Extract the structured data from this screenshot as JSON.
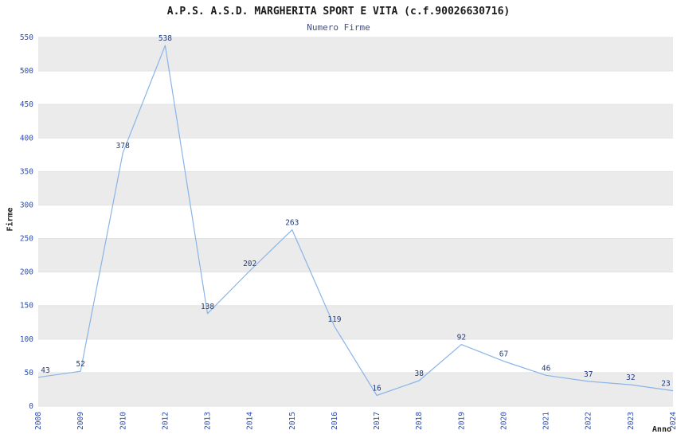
{
  "chart_data": {
    "type": "line",
    "title": "A.P.S. A.S.D. MARGHERITA SPORT E VITA (c.f.90026630716)",
    "subtitle": "Numero Firme",
    "xlabel": "Anno",
    "ylabel": "Firme",
    "categories": [
      "2008",
      "2009",
      "2010",
      "2012",
      "2013",
      "2014",
      "2015",
      "2016",
      "2017",
      "2018",
      "2019",
      "2020",
      "2021",
      "2022",
      "2023",
      "2024"
    ],
    "values": [
      43,
      52,
      378,
      538,
      138,
      202,
      263,
      119,
      16,
      38,
      92,
      67,
      46,
      37,
      32,
      23
    ],
    "ylim": [
      0,
      550
    ],
    "ytick_step": 50,
    "grid": "horizontal-bands",
    "legend": "none",
    "colors": {
      "line": "#8ab4e8",
      "band": "#ebebeb",
      "band_alt": "#ffffff",
      "grid_line": "#e3e3e3",
      "tick_label": "#2b4db3",
      "data_label": "#1f3a7a",
      "title": "#1a1a1a",
      "subtitle": "#45507a"
    }
  }
}
